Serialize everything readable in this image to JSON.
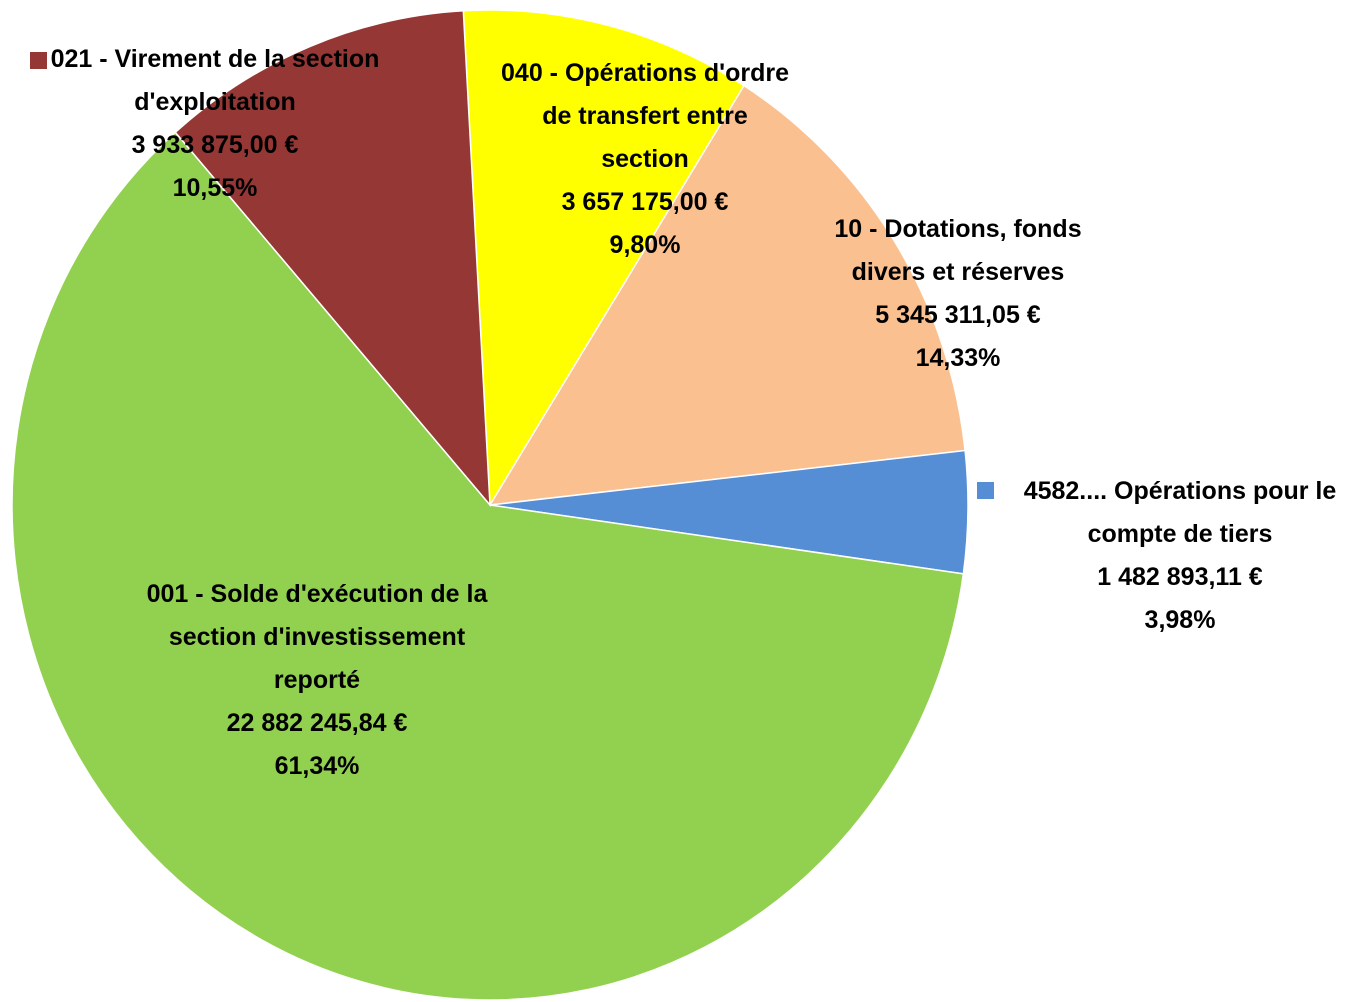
{
  "chart_data": {
    "type": "pie",
    "categories": [
      "040 - Opérations d'ordre de transfert entre section",
      "10 - Dotations, fonds divers et réserves",
      "4582.... Opérations pour le compte de tiers",
      "001 - Solde d'exécution de la section d'investissement reporté",
      "021 - Virement de la section d'exploitation"
    ],
    "values": [
      3657175.0,
      5345311.05,
      1482893.11,
      22882245.84,
      3933875.0
    ],
    "value_labels": [
      "3 657 175,00 €",
      "5 345 311,05 €",
      "1 482 893,11 €",
      "22 882 245,84 €",
      "3 933 875,00 €"
    ],
    "percentages": [
      9.8,
      14.33,
      3.98,
      61.34,
      10.55
    ],
    "percentage_labels": [
      "9,80%",
      "14,33%",
      "3,98%",
      "61,34%",
      "10,55%"
    ],
    "colors": [
      "#ffff00",
      "#fac090",
      "#558ed5",
      "#92d050",
      "#953735"
    ],
    "legend_markers": [
      false,
      false,
      true,
      false,
      true
    ]
  }
}
